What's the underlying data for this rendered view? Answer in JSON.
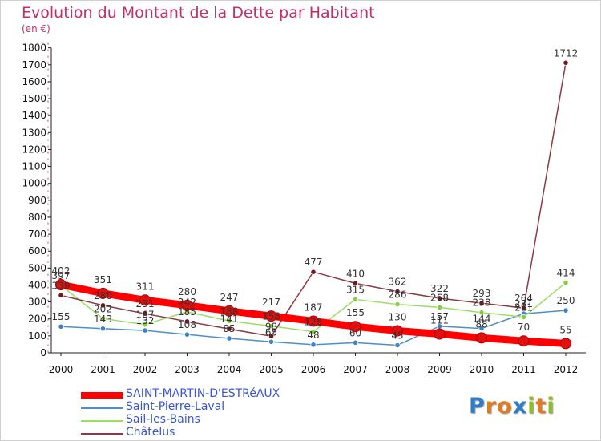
{
  "chart_data": {
    "type": "line",
    "title": "Evolution du Montant de la Dette par Habitant",
    "subtitle": "(en €)",
    "xlabel": "",
    "ylabel": "",
    "categories": [
      "2000",
      "2001",
      "2002",
      "2003",
      "2004",
      "2005",
      "2006",
      "2007",
      "2008",
      "2009",
      "2010",
      "2011",
      "2012"
    ],
    "ylim": [
      0,
      1800
    ],
    "yticks": [
      "0",
      "100",
      "200",
      "300",
      "400",
      "500",
      "600",
      "700",
      "800",
      "900",
      "1000",
      "1100",
      "1200",
      "1300",
      "1400",
      "1500",
      "1600",
      "1700",
      "1800"
    ],
    "grid": false,
    "legend_position": "bottom-left",
    "series": [
      {
        "name": "SAINT-MARTIN-D'ESTRéAUX",
        "color": "#ff0000",
        "values": [
          402,
          351,
          311,
          280,
          247,
          217,
          187,
          155,
          130,
          111,
          88,
          70,
          55
        ],
        "labels": [
          "402",
          "351",
          "311",
          "280",
          "247",
          "217",
          "187",
          "155",
          "130",
          "111",
          "88",
          "70",
          "55"
        ]
      },
      {
        "name": "Saint-Pierre-Laval",
        "color": "#4d8fc8",
        "values": [
          155,
          143,
          132,
          108,
          85,
          65,
          48,
          60,
          45,
          157,
          144,
          231,
          250
        ],
        "labels": [
          "155",
          "143",
          "132",
          "108",
          "85",
          "65",
          "48",
          "60",
          "45",
          "157",
          "144",
          "231",
          "250"
        ]
      },
      {
        "name": "Sail-les-Bains",
        "color": "#99dd66",
        "values": [
          397,
          202,
          167,
          242,
          188,
          158,
          125,
          315,
          286,
          268,
          238,
          211,
          414
        ],
        "labels": [
          "397",
          "202",
          "167",
          "242",
          "188",
          "158",
          "125",
          "315",
          "286",
          "268",
          "238",
          "211",
          "414"
        ]
      },
      {
        "name": "Châtelus",
        "color": "#8a3a40",
        "values": [
          339,
          280,
          231,
          185,
          141,
          98,
          477,
          410,
          362,
          322,
          293,
          264,
          1712
        ],
        "labels": [
          "339",
          "280",
          "231",
          "185",
          "141",
          "98",
          "477",
          "410",
          "362",
          "322",
          "293",
          "264",
          "1712"
        ]
      }
    ]
  },
  "logo": {
    "letters": [
      "P",
      "r",
      "o",
      "x",
      "i",
      "t",
      "i"
    ],
    "colors": [
      "#2f7ec5",
      "#e07b1f",
      "#e07b1f",
      "#2f7ec5",
      "#8cbf26",
      "#e07b1f",
      "#8cbf26"
    ]
  }
}
